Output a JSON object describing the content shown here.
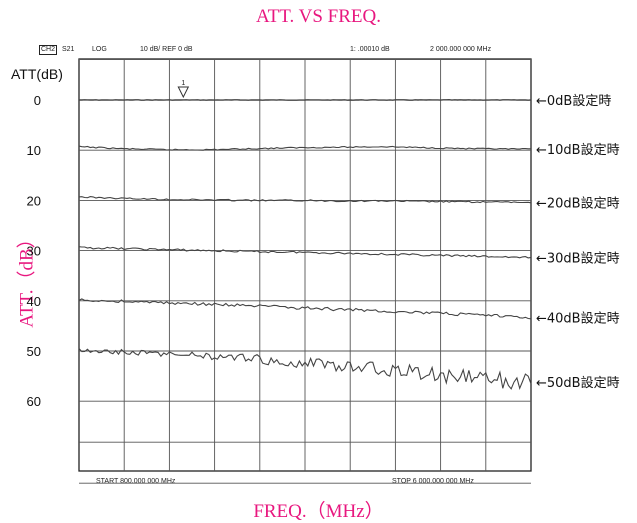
{
  "title": "ATT. VS FREQ.",
  "xlabel": "FREQ.（MHz）",
  "ylabel": "ATT.（dB）",
  "ylabel_top": "ATT(dB)",
  "colors": {
    "accent": "#e8177f",
    "trace": "#444444",
    "grid": "#555555"
  },
  "header": {
    "channel": "CH2",
    "param": "S21",
    "format": "LOG",
    "scale": "10  dB/ REF  0  dB",
    "marker": "1:  .00010 dB",
    "marker_freq": "2 000.000 000 MHz"
  },
  "footer": {
    "start": "START 800.000 000 MHz",
    "stop": "STOP 6 000.000 000 MHz"
  },
  "marker_label": "1",
  "chart_data": {
    "type": "line",
    "xlim": [
      800,
      6000
    ],
    "ylim": [
      0,
      80
    ],
    "yticks": [
      "0",
      "10",
      "20",
      "30",
      "40",
      "50",
      "60"
    ],
    "x_divisions": 10,
    "y_divisions": 8,
    "grid": true,
    "marker_x": 2000,
    "series": [
      {
        "name": "←0dB設定時",
        "x": [
          800,
          1300,
          1800,
          2300,
          2800,
          3300,
          3800,
          4300,
          4800,
          5300,
          6000
        ],
        "y": [
          0,
          0,
          0,
          0,
          0,
          0,
          0,
          0,
          0,
          0,
          0
        ]
      },
      {
        "name": "←10dB設定時",
        "x": [
          800,
          1300,
          1800,
          2300,
          2800,
          3300,
          3800,
          4300,
          4800,
          5300,
          6000
        ],
        "y": [
          9.3,
          9.7,
          9.9,
          9.9,
          9.7,
          9.5,
          9.4,
          9.3,
          9.5,
          9.7,
          9.8
        ]
      },
      {
        "name": "←20dB設定時",
        "x": [
          800,
          1300,
          1800,
          2300,
          2800,
          3300,
          3800,
          4300,
          4800,
          5300,
          6000
        ],
        "y": [
          19.3,
          19.6,
          19.8,
          19.9,
          20.0,
          20.0,
          20.1,
          20.1,
          20.2,
          20.3,
          20.4
        ]
      },
      {
        "name": "←30dB設定時",
        "x": [
          800,
          1300,
          1800,
          2300,
          2800,
          3300,
          3800,
          4300,
          4800,
          5300,
          6000
        ],
        "y": [
          29.4,
          29.6,
          29.8,
          30.0,
          30.2,
          30.3,
          30.5,
          30.7,
          30.9,
          31.1,
          31.4
        ]
      },
      {
        "name": "←40dB設定時",
        "x": [
          800,
          1300,
          1800,
          2300,
          2800,
          3300,
          3800,
          4300,
          4800,
          5300,
          6000
        ],
        "y": [
          39.9,
          40.1,
          40.4,
          40.7,
          41.0,
          41.4,
          41.7,
          42.0,
          42.4,
          42.8,
          43.3
        ]
      },
      {
        "name": "←50dB設定時",
        "x": [
          800,
          1300,
          1800,
          2300,
          2800,
          3300,
          3800,
          4300,
          4800,
          5300,
          5600,
          6000
        ],
        "y": [
          49.8,
          50.2,
          50.6,
          51.0,
          51.6,
          52.2,
          53.0,
          53.6,
          54.5,
          55.3,
          55.8,
          56.2
        ]
      }
    ]
  }
}
